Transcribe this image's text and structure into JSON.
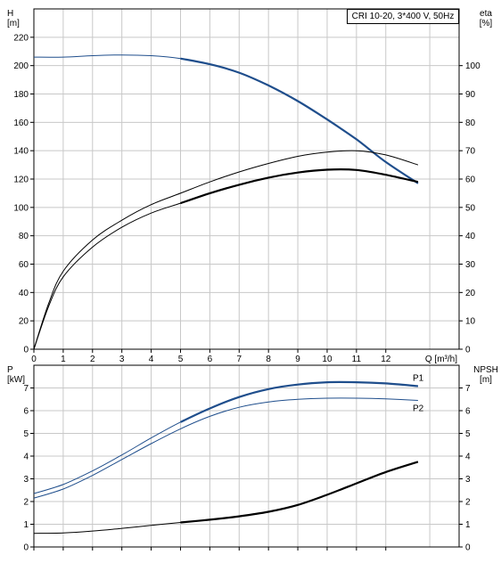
{
  "chart_data": [
    {
      "type": "line",
      "title": "CRI 10-20, 3*400 V, 50Hz",
      "xlabel": "Q [m³/h]",
      "ylabel": "H\n[m]",
      "ylabel_right": "eta\n[%]",
      "xlim": [
        0,
        14.5
      ],
      "ylim": [
        0,
        240
      ],
      "ylim_right": [
        0,
        120
      ],
      "x_ticks": [
        0,
        1,
        2,
        3,
        4,
        5,
        6,
        7,
        8,
        9,
        10,
        11,
        12
      ],
      "y_ticks": [
        0,
        20,
        40,
        60,
        80,
        100,
        120,
        140,
        160,
        180,
        200,
        220
      ],
      "y_ticks_right": [
        0,
        10,
        20,
        30,
        40,
        50,
        60,
        70,
        80,
        90,
        100
      ],
      "grid": true,
      "series": [
        {
          "axis": "left",
          "color": "#1f4e8c",
          "style": "thin-then-thick",
          "thick_from": 5,
          "x": [
            0,
            1,
            2,
            3,
            4,
            5,
            6,
            7,
            8,
            9,
            10,
            11,
            12,
            13.1
          ],
          "y": [
            206,
            206,
            207,
            207.5,
            207,
            205,
            201,
            195,
            186,
            175,
            162,
            148,
            132,
            117
          ]
        },
        {
          "axis": "right",
          "color": "#000000",
          "style": "thin",
          "x": [
            0,
            0.5,
            1,
            2,
            3,
            4,
            5,
            6,
            7,
            8,
            9,
            10,
            11,
            12,
            13.1
          ],
          "y": [
            0,
            16,
            27.5,
            38.5,
            45.5,
            51,
            55,
            59,
            62.5,
            65.5,
            68,
            69.5,
            70,
            68.5,
            65
          ]
        },
        {
          "axis": "right",
          "color": "#000000",
          "style": "thin-then-thick",
          "thick_from": 5,
          "x": [
            0,
            0.5,
            1,
            2,
            3,
            4,
            5,
            6,
            7,
            8,
            9,
            10,
            11,
            12,
            13.1
          ],
          "y": [
            0,
            15,
            25.5,
            36,
            43,
            48,
            51.5,
            55,
            58,
            60.5,
            62.3,
            63.3,
            63.2,
            61.5,
            59
          ]
        }
      ]
    },
    {
      "type": "line",
      "ylabel": "P\n[kW]",
      "ylabel_right": "NPSH\n[m]",
      "xlim": [
        0,
        14.5
      ],
      "ylim": [
        0,
        8
      ],
      "ylim_right": [
        0,
        8
      ],
      "y_ticks": [
        0,
        1,
        2,
        3,
        4,
        5,
        6,
        7
      ],
      "y_ticks_right": [
        0,
        1,
        2,
        3,
        4,
        5,
        6,
        7
      ],
      "grid": true,
      "series": [
        {
          "name": "P1",
          "axis": "left",
          "color": "#1f4e8c",
          "style": "thin-then-thick",
          "thick_from": 5,
          "x": [
            0,
            1,
            2,
            3,
            4,
            5,
            6,
            7,
            8,
            9,
            10,
            11,
            12,
            13.1
          ],
          "y": [
            2.35,
            2.75,
            3.35,
            4.05,
            4.8,
            5.5,
            6.1,
            6.6,
            6.95,
            7.15,
            7.25,
            7.25,
            7.2,
            7.08
          ]
        },
        {
          "name": "P2",
          "axis": "left",
          "color": "#1f4e8c",
          "style": "thin",
          "x": [
            0,
            1,
            2,
            3,
            4,
            5,
            6,
            7,
            8,
            9,
            10,
            11,
            12,
            13.1
          ],
          "y": [
            2.15,
            2.55,
            3.15,
            3.85,
            4.55,
            5.2,
            5.75,
            6.15,
            6.38,
            6.5,
            6.55,
            6.55,
            6.52,
            6.45
          ]
        },
        {
          "axis": "right",
          "color": "#000000",
          "style": "thin-then-thick",
          "thick_from": 5,
          "x": [
            0,
            1,
            2,
            3,
            4,
            5,
            6,
            7,
            8,
            9,
            10,
            11,
            12,
            13.1
          ],
          "y": [
            0.6,
            0.62,
            0.7,
            0.82,
            0.95,
            1.08,
            1.2,
            1.35,
            1.55,
            1.85,
            2.3,
            2.8,
            3.3,
            3.75
          ]
        }
      ]
    }
  ]
}
